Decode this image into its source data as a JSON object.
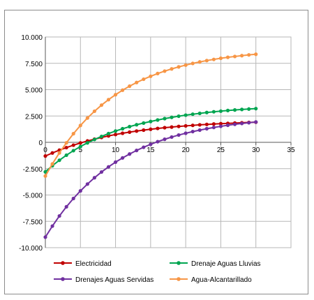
{
  "chart_data": {
    "type": "line",
    "title": "",
    "xlabel": "",
    "ylabel": "",
    "xlim": [
      0,
      35
    ],
    "ylim": [
      -10000,
      10000
    ],
    "x_ticks": [
      0,
      5,
      10,
      15,
      20,
      25,
      30,
      35
    ],
    "x_tick_labels": [
      "0",
      "5",
      "10",
      "15",
      "20",
      "25",
      "30",
      "35"
    ],
    "y_ticks": [
      10000,
      7500,
      5000,
      2500,
      0,
      -2500,
      -5000,
      -7500,
      -10000
    ],
    "y_tick_labels": [
      "10.000",
      "7.500",
      "5.000",
      "2.500",
      "0",
      "-2.500",
      "-5.000",
      "-7.500",
      "-10.000"
    ],
    "grid": true,
    "legend_position": "bottom",
    "x": [
      0,
      1,
      2,
      3,
      4,
      5,
      6,
      7,
      8,
      9,
      10,
      11,
      12,
      13,
      14,
      15,
      16,
      17,
      18,
      19,
      20,
      21,
      22,
      23,
      24,
      25,
      26,
      27,
      28,
      29,
      30
    ],
    "series": [
      {
        "name": "Electricidad",
        "color": "#c00000",
        "values": [
          -1300,
          -1010,
          -740,
          -500,
          -270,
          -60,
          130,
          300,
          460,
          610,
          740,
          860,
          970,
          1070,
          1160,
          1240,
          1320,
          1390,
          1450,
          1510,
          1560,
          1610,
          1660,
          1700,
          1740,
          1770,
          1800,
          1830,
          1860,
          1890,
          1910
        ]
      },
      {
        "name": "Drenaje Aguas Lluvias",
        "color": "#00a550",
        "values": [
          -2800,
          -2220,
          -1700,
          -1220,
          -790,
          -400,
          -50,
          270,
          560,
          830,
          1070,
          1290,
          1490,
          1670,
          1830,
          1980,
          2120,
          2250,
          2370,
          2480,
          2580,
          2670,
          2750,
          2830,
          2900,
          2960,
          3020,
          3070,
          3120,
          3160,
          3200
        ]
      },
      {
        "name": "Drenajes Aguas Servidas",
        "color": "#7030a0",
        "values": [
          -9000,
          -7950,
          -6990,
          -6120,
          -5330,
          -4610,
          -3960,
          -3360,
          -2820,
          -2330,
          -1880,
          -1480,
          -1110,
          -770,
          -470,
          -190,
          60,
          290,
          500,
          690,
          860,
          1020,
          1160,
          1290,
          1410,
          1520,
          1620,
          1710,
          1790,
          1860,
          1930
        ]
      },
      {
        "name": "Agua-Alcantarillado",
        "color": "#f79646",
        "values": [
          -3200,
          -2050,
          -1000,
          -50,
          820,
          1600,
          2310,
          2950,
          3530,
          4050,
          4520,
          4950,
          5330,
          5680,
          5990,
          6270,
          6530,
          6760,
          6970,
          7160,
          7330,
          7490,
          7630,
          7760,
          7870,
          7980,
          8070,
          8150,
          8230,
          8300,
          8360
        ]
      }
    ]
  }
}
